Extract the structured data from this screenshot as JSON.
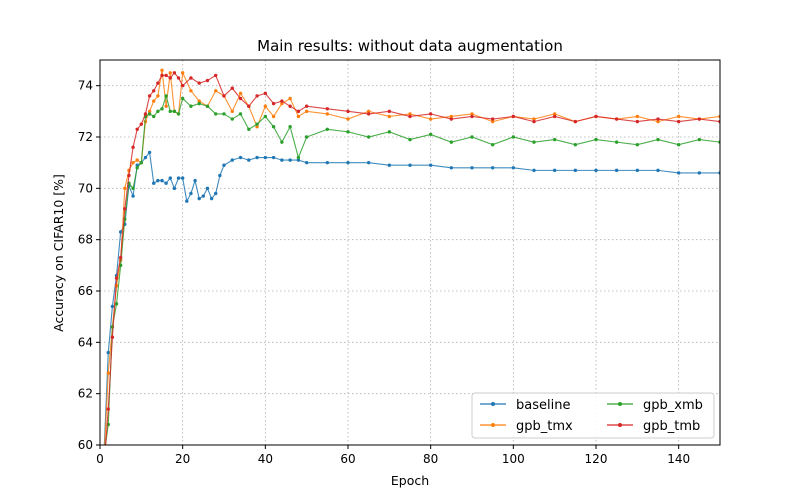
{
  "chart_data": {
    "type": "line",
    "title": "Main results: without data augmentation",
    "xlabel": "Epoch",
    "ylabel": "Accuracy on CIFAR10 [%]",
    "xlim": [
      0,
      150
    ],
    "ylim": [
      60,
      75
    ],
    "xticks": [
      "0",
      "20",
      "40",
      "60",
      "80",
      "100",
      "120",
      "140"
    ],
    "yticks": [
      "60",
      "62",
      "64",
      "66",
      "68",
      "70",
      "72",
      "74"
    ],
    "grid": true,
    "legend_position": "lower-right",
    "legend_columns": 2,
    "series": [
      {
        "name": "baseline",
        "color": "#1f77b4",
        "x": [
          1,
          2,
          3,
          4,
          5,
          6,
          7,
          8,
          9,
          10,
          11,
          12,
          13,
          14,
          15,
          16,
          17,
          18,
          19,
          20,
          21,
          22,
          23,
          24,
          25,
          26,
          27,
          28,
          29,
          30,
          32,
          34,
          36,
          38,
          40,
          42,
          44,
          46,
          48,
          50,
          55,
          60,
          65,
          70,
          75,
          80,
          85,
          90,
          95,
          100,
          105,
          110,
          115,
          120,
          125,
          130,
          135,
          140,
          145,
          150
        ],
        "y": [
          59.8,
          63.6,
          65.4,
          66.6,
          68.3,
          68.6,
          70.1,
          69.7,
          70.9,
          71.0,
          71.2,
          71.4,
          70.2,
          70.3,
          70.3,
          70.2,
          70.4,
          70.0,
          70.4,
          70.4,
          69.5,
          69.8,
          70.3,
          69.6,
          69.7,
          70.0,
          69.6,
          69.8,
          70.5,
          70.9,
          71.1,
          71.2,
          71.1,
          71.2,
          71.2,
          71.2,
          71.1,
          71.1,
          71.1,
          71.0,
          71.0,
          71.0,
          71.0,
          70.9,
          70.9,
          70.9,
          70.8,
          70.8,
          70.8,
          70.8,
          70.7,
          70.7,
          70.7,
          70.7,
          70.7,
          70.7,
          70.7,
          70.6,
          70.6,
          70.6
        ]
      },
      {
        "name": "gpb_tmx",
        "color": "#ff7f0e",
        "x": [
          1,
          2,
          3,
          4,
          5,
          6,
          7,
          8,
          9,
          10,
          11,
          12,
          13,
          14,
          15,
          16,
          17,
          18,
          19,
          20,
          22,
          24,
          26,
          28,
          30,
          32,
          34,
          36,
          38,
          40,
          42,
          44,
          46,
          48,
          50,
          55,
          60,
          65,
          70,
          75,
          80,
          85,
          90,
          95,
          100,
          105,
          110,
          115,
          120,
          125,
          130,
          135,
          140,
          145,
          150
        ],
        "y": [
          59.5,
          62.8,
          64.6,
          66.2,
          67.2,
          70.0,
          70.7,
          71.0,
          71.1,
          71.0,
          72.6,
          73.0,
          73.4,
          73.6,
          74.6,
          73.2,
          74.5,
          73.0,
          72.9,
          74.5,
          73.8,
          73.4,
          73.2,
          73.8,
          73.6,
          73.0,
          73.7,
          73.2,
          72.4,
          73.2,
          72.8,
          73.3,
          73.5,
          72.8,
          73.0,
          72.9,
          72.7,
          73.0,
          72.8,
          72.9,
          72.7,
          72.8,
          72.9,
          72.6,
          72.8,
          72.7,
          72.9,
          72.6,
          72.8,
          72.7,
          72.8,
          72.6,
          72.8,
          72.7,
          72.8
        ]
      },
      {
        "name": "gpb_xmb",
        "color": "#2ca02c",
        "x": [
          1,
          2,
          3,
          4,
          5,
          6,
          7,
          8,
          9,
          10,
          11,
          12,
          13,
          14,
          15,
          16,
          17,
          18,
          19,
          20,
          22,
          24,
          26,
          28,
          30,
          32,
          34,
          36,
          38,
          40,
          42,
          44,
          46,
          48,
          50,
          55,
          60,
          65,
          70,
          75,
          80,
          85,
          90,
          95,
          100,
          105,
          110,
          115,
          120,
          125,
          130,
          135,
          140,
          145,
          150
        ],
        "y": [
          59.6,
          60.8,
          64.6,
          65.5,
          67.0,
          68.8,
          70.2,
          70.0,
          70.8,
          71.0,
          72.8,
          72.9,
          72.8,
          73.0,
          73.1,
          73.6,
          73.0,
          73.0,
          72.9,
          73.5,
          73.2,
          73.3,
          73.2,
          72.9,
          72.9,
          72.7,
          72.9,
          72.3,
          72.5,
          72.8,
          72.4,
          71.8,
          72.4,
          71.2,
          72.0,
          72.3,
          72.2,
          72.0,
          72.2,
          71.9,
          72.1,
          71.8,
          72.0,
          71.7,
          72.0,
          71.8,
          71.9,
          71.7,
          71.9,
          71.8,
          71.7,
          71.9,
          71.7,
          71.9,
          71.8
        ]
      },
      {
        "name": "gpb_tmb",
        "color": "#d62728",
        "x": [
          1,
          2,
          3,
          4,
          5,
          6,
          7,
          8,
          9,
          10,
          11,
          12,
          13,
          14,
          15,
          16,
          17,
          18,
          19,
          20,
          22,
          24,
          26,
          28,
          30,
          32,
          34,
          36,
          38,
          40,
          42,
          44,
          46,
          48,
          50,
          55,
          60,
          65,
          70,
          75,
          80,
          85,
          90,
          95,
          100,
          105,
          110,
          115,
          120,
          125,
          130,
          135,
          140,
          145,
          150
        ],
        "y": [
          59.2,
          61.4,
          64.2,
          66.5,
          67.3,
          69.2,
          70.5,
          71.6,
          72.3,
          72.5,
          72.9,
          73.6,
          73.8,
          74.1,
          74.4,
          74.4,
          74.3,
          74.5,
          74.3,
          74.0,
          74.3,
          74.1,
          74.2,
          74.4,
          73.6,
          73.9,
          73.5,
          73.2,
          73.6,
          73.7,
          73.3,
          73.4,
          73.2,
          73.0,
          73.2,
          73.1,
          73.0,
          72.9,
          73.0,
          72.8,
          72.9,
          72.7,
          72.8,
          72.7,
          72.8,
          72.6,
          72.8,
          72.6,
          72.8,
          72.7,
          72.6,
          72.7,
          72.6,
          72.7,
          72.6
        ]
      }
    ]
  }
}
